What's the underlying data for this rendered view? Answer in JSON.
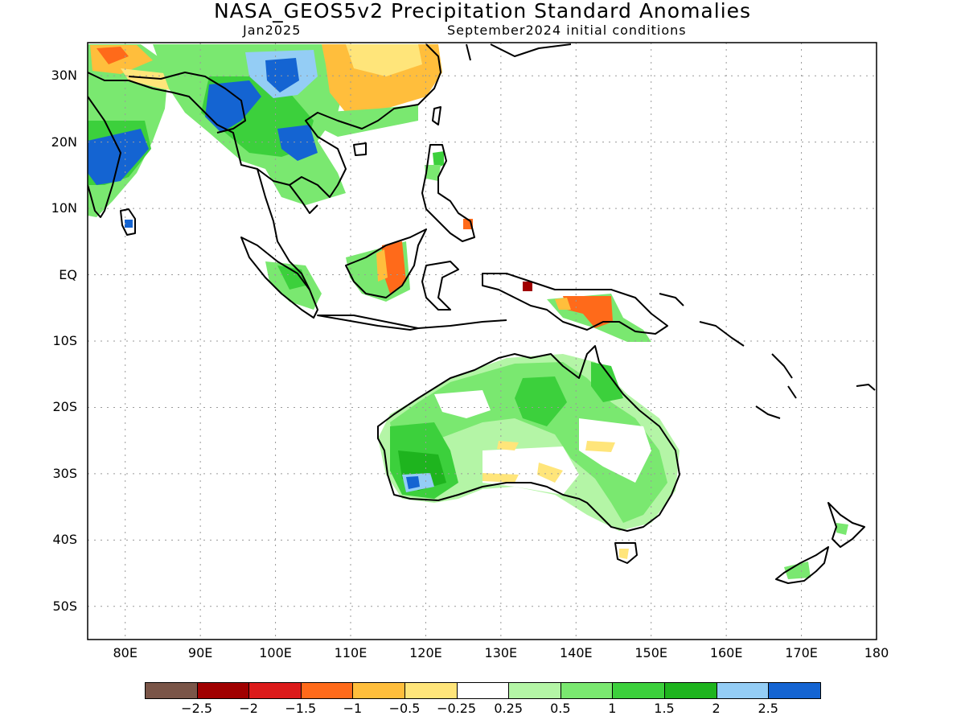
{
  "title": "NASA_GEOS5v2 Precipitation Standard Anomalies",
  "subtitle_left": "Jan2025",
  "subtitle_right": "September2024 initial conditions",
  "map": {
    "lon_range": [
      75,
      180
    ],
    "lat_range": [
      -55,
      35
    ],
    "lat_labels": [
      {
        "lat": 30,
        "label": "30N"
      },
      {
        "lat": 20,
        "label": "20N"
      },
      {
        "lat": 10,
        "label": "10N"
      },
      {
        "lat": 0,
        "label": "EQ"
      },
      {
        "lat": -10,
        "label": "10S"
      },
      {
        "lat": -20,
        "label": "20S"
      },
      {
        "lat": -30,
        "label": "30S"
      },
      {
        "lat": -40,
        "label": "40S"
      },
      {
        "lat": -50,
        "label": "50S"
      }
    ],
    "lon_labels": [
      {
        "lon": 80,
        "label": "80E"
      },
      {
        "lon": 90,
        "label": "90E"
      },
      {
        "lon": 100,
        "label": "100E"
      },
      {
        "lon": 110,
        "label": "110E"
      },
      {
        "lon": 120,
        "label": "120E"
      },
      {
        "lon": 130,
        "label": "130E"
      },
      {
        "lon": 140,
        "label": "140E"
      },
      {
        "lon": 150,
        "label": "150E"
      },
      {
        "lon": 160,
        "label": "160E"
      },
      {
        "lon": 170,
        "label": "170E"
      },
      {
        "lon": 180,
        "label": "180"
      }
    ],
    "grid": true
  },
  "colorbar": {
    "colors": [
      "#7a5548",
      "#a00000",
      "#dc1a1a",
      "#ff6a1a",
      "#ffbe3c",
      "#ffe57a",
      "#ffffff",
      "#b4f5a6",
      "#7ae870",
      "#3cd03c",
      "#1eb41e",
      "#94cdf5",
      "#1464d2"
    ],
    "labels": [
      "−2.5",
      "−2",
      "−1.5",
      "−1",
      "−0.5",
      "−0.25",
      "0.25",
      "0.5",
      "1",
      "1.5",
      "2",
      "2.5"
    ]
  }
}
